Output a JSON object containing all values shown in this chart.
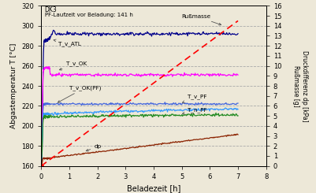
{
  "title_line1": "DK3",
  "title_line2": "PF-Laufzeit vor Beladung: 141 h",
  "xlabel": "Beladezeit [h]",
  "ylabel_left": "Abgastemperatur T [°C]",
  "ylabel_right": "Druckdifferenz dp [kPa]\nRußmasse [g]",
  "xlim": [
    0,
    8
  ],
  "ylim_left": [
    160,
    320
  ],
  "ylim_right": [
    0,
    16
  ],
  "bg_color": "#ede8d8",
  "colors": {
    "T_v_ATL": "#00008b",
    "T_v_OK": "#ff00ff",
    "T_v_OKPF": "#4466dd",
    "T_v_PF": "#3399ff",
    "T_n_PF": "#228b22",
    "dp": "#8b2200",
    "russmasse": "#ff0000"
  },
  "xticks": [
    0,
    1,
    2,
    3,
    4,
    5,
    6,
    7,
    8
  ],
  "yticks_left": [
    160,
    180,
    200,
    220,
    240,
    260,
    280,
    300,
    320
  ],
  "yticks_right": [
    0,
    1,
    2,
    3,
    4,
    5,
    6,
    7,
    8,
    9,
    10,
    11,
    12,
    13,
    14,
    15,
    16
  ]
}
